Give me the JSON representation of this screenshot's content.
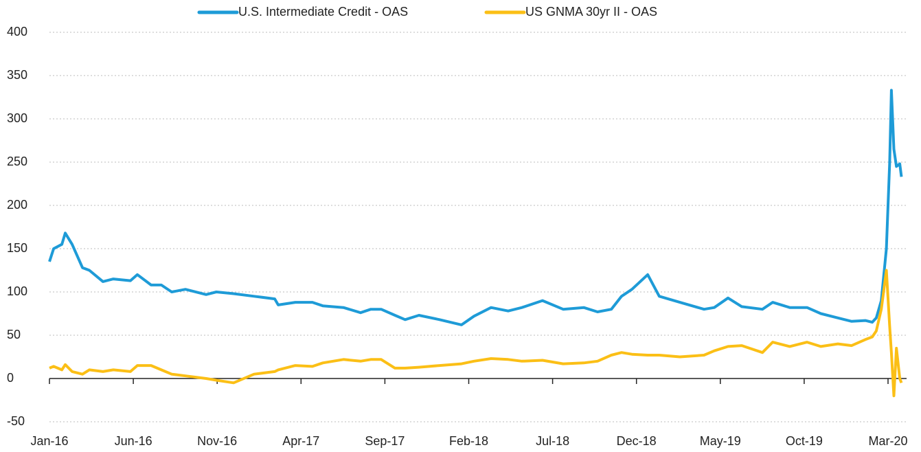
{
  "chart_data": {
    "type": "line",
    "x": [
      0,
      0.25,
      0.74,
      0.94,
      1.35,
      1.97,
      2.38,
      3.19,
      3.81,
      4.83,
      5.24,
      6.06,
      6.67,
      7.29,
      8.11,
      9.34,
      9.95,
      10.98,
      12.2,
      13.43,
      13.64,
      14.66,
      15.68,
      16.3,
      17.53,
      18.55,
      19.16,
      19.78,
      20.6,
      21.21,
      22.03,
      23.26,
      24.57,
      25.31,
      26.33,
      27.35,
      28.17,
      29.4,
      30.63,
      31.86,
      32.68,
      33.5,
      34.11,
      34.73,
      35.67,
      36.36,
      37.59,
      39.03,
      39.64,
      40.46,
      41.28,
      42.51,
      43.12,
      44.14,
      45.17,
      45.99,
      47.01,
      47.83,
      48.65,
      49.06,
      49.3,
      49.6,
      49.9,
      50.1,
      50.2,
      50.35,
      50.5,
      50.7,
      50.8
    ],
    "series": [
      {
        "name": "U.S. Intermediate Credit - OAS",
        "color": "#1e9bd7",
        "values": [
          135,
          150,
          155,
          168,
          155,
          128,
          125,
          112,
          115,
          113,
          120,
          108,
          108,
          100,
          103,
          97,
          100,
          98,
          95,
          92,
          85,
          88,
          88,
          84,
          82,
          76,
          80,
          80,
          73,
          68,
          73,
          68,
          62,
          72,
          82,
          78,
          82,
          90,
          80,
          82,
          77,
          80,
          95,
          103,
          120,
          95,
          88,
          80,
          82,
          93,
          83,
          80,
          88,
          82,
          82,
          75,
          70,
          66,
          67,
          65,
          70,
          90,
          150,
          250,
          333,
          265,
          245,
          248,
          233
        ]
      },
      {
        "name": "US GNMA 30yr II - OAS",
        "color": "#fbbf16",
        "values": [
          12,
          14,
          10,
          16,
          8,
          5,
          10,
          8,
          10,
          8,
          15,
          15,
          10,
          5,
          3,
          0,
          -2,
          -5,
          5,
          8,
          10,
          15,
          14,
          18,
          22,
          20,
          22,
          22,
          12,
          12,
          13,
          15,
          17,
          20,
          23,
          22,
          20,
          21,
          17,
          18,
          20,
          27,
          30,
          28,
          27,
          27,
          25,
          27,
          32,
          37,
          38,
          30,
          42,
          37,
          42,
          37,
          40,
          38,
          45,
          48,
          55,
          80,
          125,
          60,
          30,
          -20,
          35,
          0,
          -5
        ]
      }
    ],
    "xlim": [
      0,
      51.5
    ],
    "xticks": [
      {
        "value": 0,
        "label": "Jan-16"
      },
      {
        "value": 5,
        "label": "Jun-16"
      },
      {
        "value": 10,
        "label": "Nov-16"
      },
      {
        "value": 15,
        "label": "Apr-17"
      },
      {
        "value": 20,
        "label": "Sep-17"
      },
      {
        "value": 25,
        "label": "Feb-18"
      },
      {
        "value": 30,
        "label": "Jul-18"
      },
      {
        "value": 35,
        "label": "Dec-18"
      },
      {
        "value": 40,
        "label": "May-19"
      },
      {
        "value": 45,
        "label": "Oct-19"
      },
      {
        "value": 50,
        "label": "Mar-20"
      }
    ],
    "ylim": [
      -50,
      400
    ],
    "yticks": [
      -50,
      0,
      50,
      100,
      150,
      200,
      250,
      300,
      350,
      400
    ],
    "grid": true,
    "legend": "top"
  }
}
